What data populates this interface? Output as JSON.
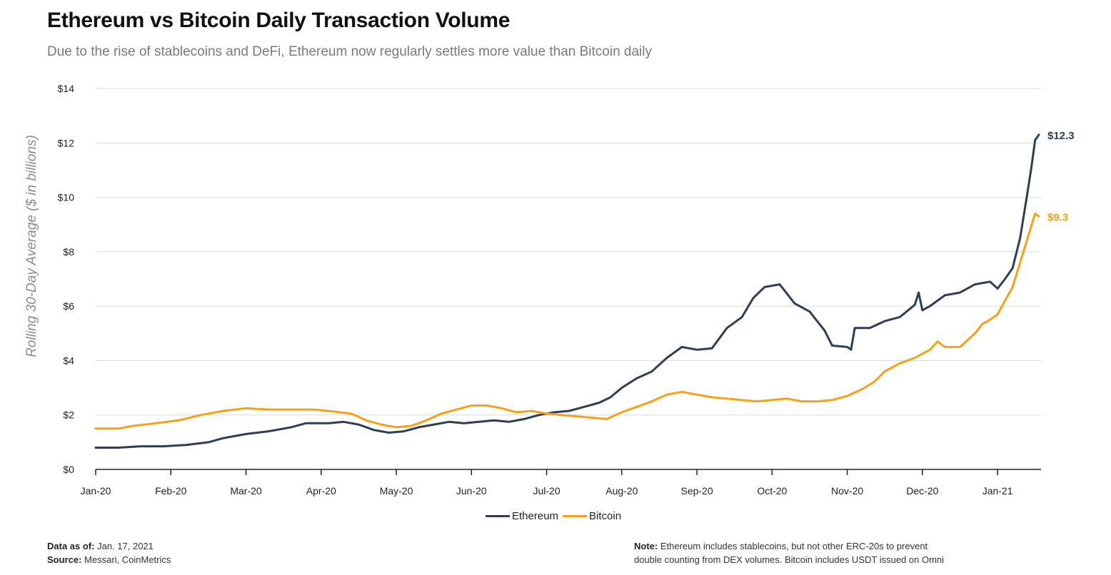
{
  "header": {
    "title": "Ethereum vs Bitcoin Daily Transaction Volume",
    "subtitle": "Due to the rise of stablecoins and DeFi, Ethereum now regularly settles more value than Bitcoin daily"
  },
  "colors": {
    "ethereum": "#2e3f55",
    "bitcoin": "#f7a11a",
    "grid": "#d9d9d9",
    "axis": "#222222"
  },
  "chart_data": {
    "type": "line",
    "title": "Ethereum vs Bitcoin Daily Transaction Volume",
    "xlabel": "",
    "ylabel": "Rolling 30-Day Average ($ in billions)",
    "ylim": [
      0,
      14
    ],
    "y_ticks": [
      0,
      2,
      4,
      6,
      8,
      10,
      12,
      14
    ],
    "y_tick_labels": [
      "$0",
      "$2",
      "$4",
      "$6",
      "$8",
      "$10",
      "$12",
      "$14"
    ],
    "x_ticks": [
      "Jan-20",
      "Feb-20",
      "Mar-20",
      "Apr-20",
      "May-20",
      "Jun-20",
      "Jul-20",
      "Aug-20",
      "Sep-20",
      "Oct-20",
      "Nov-20",
      "Dec-20",
      "Jan-21"
    ],
    "x_range_months": [
      0,
      12.55
    ],
    "grid": true,
    "legend_position": "bottom-center",
    "series": [
      {
        "name": "Ethereum",
        "end_label": "$12.3",
        "points": [
          [
            0,
            0.8
          ],
          [
            0.3,
            0.8
          ],
          [
            0.6,
            0.85
          ],
          [
            0.9,
            0.85
          ],
          [
            1.2,
            0.9
          ],
          [
            1.5,
            1.0
          ],
          [
            1.7,
            1.15
          ],
          [
            2.0,
            1.3
          ],
          [
            2.3,
            1.4
          ],
          [
            2.6,
            1.55
          ],
          [
            2.8,
            1.7
          ],
          [
            3.1,
            1.7
          ],
          [
            3.3,
            1.75
          ],
          [
            3.5,
            1.65
          ],
          [
            3.7,
            1.45
          ],
          [
            3.9,
            1.35
          ],
          [
            4.1,
            1.4
          ],
          [
            4.3,
            1.55
          ],
          [
            4.5,
            1.65
          ],
          [
            4.7,
            1.75
          ],
          [
            4.9,
            1.7
          ],
          [
            5.1,
            1.75
          ],
          [
            5.3,
            1.8
          ],
          [
            5.5,
            1.75
          ],
          [
            5.7,
            1.85
          ],
          [
            5.9,
            2.0
          ],
          [
            6.1,
            2.1
          ],
          [
            6.3,
            2.15
          ],
          [
            6.5,
            2.3
          ],
          [
            6.7,
            2.45
          ],
          [
            6.85,
            2.65
          ],
          [
            7.0,
            3.0
          ],
          [
            7.2,
            3.35
          ],
          [
            7.4,
            3.6
          ],
          [
            7.6,
            4.1
          ],
          [
            7.8,
            4.5
          ],
          [
            8.0,
            4.4
          ],
          [
            8.2,
            4.45
          ],
          [
            8.4,
            5.2
          ],
          [
            8.6,
            5.6
          ],
          [
            8.75,
            6.3
          ],
          [
            8.9,
            6.7
          ],
          [
            9.1,
            6.8
          ],
          [
            9.3,
            6.1
          ],
          [
            9.5,
            5.8
          ],
          [
            9.7,
            5.1
          ],
          [
            9.8,
            4.55
          ],
          [
            10.0,
            4.5
          ],
          [
            10.05,
            4.4
          ],
          [
            10.1,
            5.2
          ],
          [
            10.3,
            5.2
          ],
          [
            10.5,
            5.45
          ],
          [
            10.7,
            5.6
          ],
          [
            10.9,
            6.05
          ],
          [
            10.95,
            6.5
          ],
          [
            11.0,
            5.85
          ],
          [
            11.1,
            6.0
          ],
          [
            11.3,
            6.4
          ],
          [
            11.5,
            6.5
          ],
          [
            11.7,
            6.8
          ],
          [
            11.9,
            6.9
          ],
          [
            12.0,
            6.65
          ],
          [
            12.1,
            7.0
          ],
          [
            12.2,
            7.4
          ],
          [
            12.3,
            8.5
          ],
          [
            12.4,
            10.2
          ],
          [
            12.45,
            11.1
          ],
          [
            12.5,
            12.1
          ],
          [
            12.55,
            12.3
          ]
        ]
      },
      {
        "name": "Bitcoin",
        "end_label": "$9.3",
        "points": [
          [
            0,
            1.5
          ],
          [
            0.3,
            1.5
          ],
          [
            0.5,
            1.6
          ],
          [
            0.8,
            1.7
          ],
          [
            1.1,
            1.8
          ],
          [
            1.4,
            2.0
          ],
          [
            1.7,
            2.15
          ],
          [
            2.0,
            2.25
          ],
          [
            2.3,
            2.2
          ],
          [
            2.6,
            2.2
          ],
          [
            2.9,
            2.2
          ],
          [
            3.1,
            2.15
          ],
          [
            3.4,
            2.05
          ],
          [
            3.6,
            1.8
          ],
          [
            3.8,
            1.65
          ],
          [
            4.0,
            1.55
          ],
          [
            4.2,
            1.6
          ],
          [
            4.4,
            1.8
          ],
          [
            4.6,
            2.05
          ],
          [
            4.8,
            2.2
          ],
          [
            5.0,
            2.35
          ],
          [
            5.2,
            2.35
          ],
          [
            5.4,
            2.25
          ],
          [
            5.6,
            2.1
          ],
          [
            5.8,
            2.15
          ],
          [
            6.0,
            2.05
          ],
          [
            6.2,
            2.0
          ],
          [
            6.4,
            1.95
          ],
          [
            6.6,
            1.9
          ],
          [
            6.8,
            1.85
          ],
          [
            7.0,
            2.1
          ],
          [
            7.2,
            2.3
          ],
          [
            7.4,
            2.5
          ],
          [
            7.6,
            2.75
          ],
          [
            7.8,
            2.85
          ],
          [
            8.0,
            2.75
          ],
          [
            8.2,
            2.65
          ],
          [
            8.4,
            2.6
          ],
          [
            8.6,
            2.55
          ],
          [
            8.8,
            2.5
          ],
          [
            9.0,
            2.55
          ],
          [
            9.2,
            2.6
          ],
          [
            9.4,
            2.5
          ],
          [
            9.6,
            2.5
          ],
          [
            9.8,
            2.55
          ],
          [
            10.0,
            2.7
          ],
          [
            10.2,
            2.95
          ],
          [
            10.35,
            3.2
          ],
          [
            10.5,
            3.6
          ],
          [
            10.7,
            3.9
          ],
          [
            10.9,
            4.1
          ],
          [
            11.1,
            4.4
          ],
          [
            11.2,
            4.7
          ],
          [
            11.3,
            4.5
          ],
          [
            11.5,
            4.5
          ],
          [
            11.7,
            5.0
          ],
          [
            11.8,
            5.35
          ],
          [
            11.9,
            5.5
          ],
          [
            12.0,
            5.7
          ],
          [
            12.1,
            6.2
          ],
          [
            12.2,
            6.7
          ],
          [
            12.3,
            7.6
          ],
          [
            12.4,
            8.5
          ],
          [
            12.5,
            9.4
          ],
          [
            12.55,
            9.3
          ]
        ]
      }
    ]
  },
  "footer": {
    "data_as_of_label": "Data as of:",
    "data_as_of_value": "Jan. 17, 2021",
    "source_label": "Source:",
    "source_value": "Messari, CoinMetrics",
    "note_label": "Note:",
    "note_line1": "Ethereum includes stablecoins, but not other ERC-20s to prevent",
    "note_line2": "double counting from DEX volumes. Bitcoin includes USDT issued on Omni"
  }
}
